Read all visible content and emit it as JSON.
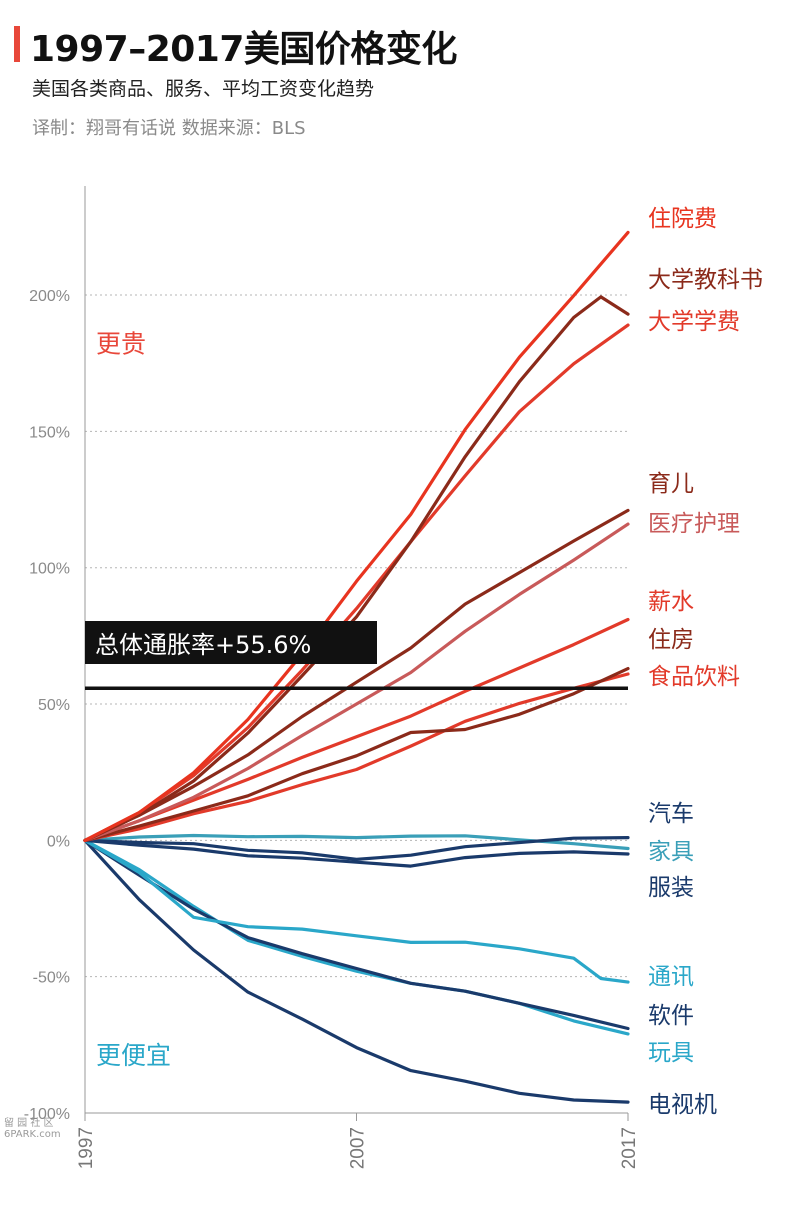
{
  "header": {
    "title": "1997–2017美国价格变化",
    "subtitle": "美国各类商品、服务、平均工资变化趋势",
    "credit": "译制：翔哥有话说  数据来源：BLS"
  },
  "watermark": {
    "line1": "留 园 社 区",
    "line2": "6PARK.com"
  },
  "colors": {
    "accent": "#e8473a",
    "cheaper": "#2aa7c9",
    "dark_navy": "#1a3a6b",
    "dark_red": "#8b2a1a",
    "red": "#e23a2a",
    "pink_red": "#c85a5a"
  },
  "chart_data": {
    "type": "line",
    "title": "1997–2017美国价格变化",
    "xlabel": "",
    "ylabel": "",
    "xlim": [
      1997,
      2017
    ],
    "ylim": [
      -100,
      240
    ],
    "x_ticks": [
      {
        "value": 1997,
        "label": "1997"
      },
      {
        "value": 2007,
        "label": "2007"
      },
      {
        "value": 2017,
        "label": "2017"
      }
    ],
    "y_ticks": [
      {
        "value": 200,
        "label": "200%"
      },
      {
        "value": 150,
        "label": "150%"
      },
      {
        "value": 100,
        "label": "100%"
      },
      {
        "value": 50,
        "label": "50%"
      },
      {
        "value": 0,
        "label": "0%"
      },
      {
        "value": -50,
        "label": "-50%"
      },
      {
        "value": -100,
        "label": "-100%"
      }
    ],
    "grid": true,
    "region_labels": {
      "more_expensive": "更贵",
      "cheaper": "更便宜"
    },
    "overall_inflation": {
      "value": 55.6,
      "label": "总体通胀率+55.6%"
    },
    "series": [
      {
        "name": "住院费",
        "color": "#e8341f",
        "x": [
          1997,
          1999,
          2001,
          2003,
          2005,
          2007,
          2009,
          2011,
          2013,
          2015,
          2017
        ],
        "y": [
          0,
          10,
          25,
          45,
          68,
          95,
          120,
          150,
          177,
          200,
          223
        ]
      },
      {
        "name": "大学教科书",
        "color": "#8b2a1a",
        "x": [
          1997,
          1999,
          2001,
          2003,
          2005,
          2007,
          2009,
          2011,
          2013,
          2015,
          2016,
          2017
        ],
        "y": [
          0,
          9,
          22,
          40,
          60,
          82,
          110,
          140,
          168,
          192,
          200,
          193
        ]
      },
      {
        "name": "大学学费",
        "color": "#e23a2a",
        "x": [
          1997,
          1999,
          2001,
          2003,
          2005,
          2007,
          2009,
          2011,
          2013,
          2015,
          2017
        ],
        "y": [
          0,
          10,
          24,
          42,
          62,
          85,
          110,
          133,
          157,
          175,
          189
        ]
      },
      {
        "name": "育儿",
        "color": "#8b2a1a",
        "x": [
          1997,
          1999,
          2001,
          2003,
          2005,
          2007,
          2009,
          2011,
          2013,
          2015,
          2017
        ],
        "y": [
          0,
          9,
          20,
          32,
          45,
          58,
          71,
          86,
          98,
          110,
          121
        ]
      },
      {
        "name": "医疗护理",
        "color": "#c85a5a",
        "x": [
          1997,
          1999,
          2001,
          2003,
          2005,
          2007,
          2009,
          2011,
          2013,
          2015,
          2017
        ],
        "y": [
          0,
          7,
          16,
          27,
          38,
          50,
          62,
          76,
          90,
          103,
          116
        ]
      },
      {
        "name": "薪水",
        "color": "#e23a2a",
        "x": [
          1997,
          1999,
          2001,
          2003,
          2005,
          2007,
          2009,
          2011,
          2013,
          2015,
          2017
        ],
        "y": [
          0,
          7,
          15,
          23,
          30,
          38,
          46,
          54,
          63,
          72,
          81
        ]
      },
      {
        "name": "住房",
        "color": "#8b2a1a",
        "x": [
          1997,
          1999,
          2001,
          2003,
          2005,
          2007,
          2009,
          2011,
          2013,
          2015,
          2017
        ],
        "y": [
          0,
          5,
          11,
          17,
          24,
          31,
          40,
          40,
          46,
          54,
          63
        ]
      },
      {
        "name": "食品饮料",
        "color": "#e23a2a",
        "x": [
          1997,
          1999,
          2001,
          2003,
          2005,
          2007,
          2009,
          2011,
          2013,
          2015,
          2017
        ],
        "y": [
          0,
          4,
          10,
          15,
          20,
          26,
          35,
          43,
          50,
          56,
          61
        ]
      },
      {
        "name": "汽车",
        "color": "#1a3a6b",
        "x": [
          1997,
          1999,
          2001,
          2003,
          2005,
          2007,
          2009,
          2011,
          2013,
          2015,
          2017
        ],
        "y": [
          0,
          -1,
          -1,
          -3,
          -5,
          -7,
          -5,
          -3,
          -1,
          1,
          1
        ]
      },
      {
        "name": "家具",
        "color": "#3a9fb8",
        "x": [
          1997,
          1999,
          2001,
          2003,
          2005,
          2007,
          2009,
          2011,
          2013,
          2015,
          2017
        ],
        "y": [
          0,
          1,
          2,
          2,
          1,
          1,
          2,
          1,
          0,
          -1,
          -3
        ]
      },
      {
        "name": "服装",
        "color": "#1a3a6b",
        "x": [
          1997,
          1999,
          2001,
          2003,
          2005,
          2007,
          2009,
          2011,
          2013,
          2015,
          2017
        ],
        "y": [
          0,
          -2,
          -3,
          -5,
          -7,
          -8,
          -9,
          -7,
          -5,
          -4,
          -5
        ]
      },
      {
        "name": "通讯",
        "color": "#2aa7c9",
        "x": [
          1997,
          1999,
          2001,
          2003,
          2005,
          2007,
          2009,
          2011,
          2013,
          2015,
          2016,
          2017
        ],
        "y": [
          0,
          -12,
          -28,
          -31,
          -33,
          -35,
          -37,
          -38,
          -40,
          -43,
          -50,
          -52
        ]
      },
      {
        "name": "软件",
        "color": "#1a3a6b",
        "x": [
          1997,
          1999,
          2001,
          2003,
          2005,
          2007,
          2009,
          2011,
          2013,
          2015,
          2017
        ],
        "y": [
          0,
          -13,
          -25,
          -35,
          -42,
          -47,
          -52,
          -56,
          -60,
          -64,
          -69
        ]
      },
      {
        "name": "玩具",
        "color": "#2aa7c9",
        "x": [
          1997,
          1999,
          2001,
          2003,
          2005,
          2007,
          2009,
          2011,
          2013,
          2015,
          2017
        ],
        "y": [
          0,
          -11,
          -24,
          -36,
          -43,
          -48,
          -52,
          -56,
          -60,
          -66,
          -71
        ]
      },
      {
        "name": "电视机",
        "color": "#1a3a6b",
        "x": [
          1997,
          1999,
          2001,
          2003,
          2005,
          2007,
          2009,
          2011,
          2013,
          2015,
          2017
        ],
        "y": [
          0,
          -22,
          -40,
          -55,
          -66,
          -76,
          -84,
          -89,
          -93,
          -95,
          -96
        ]
      }
    ]
  }
}
